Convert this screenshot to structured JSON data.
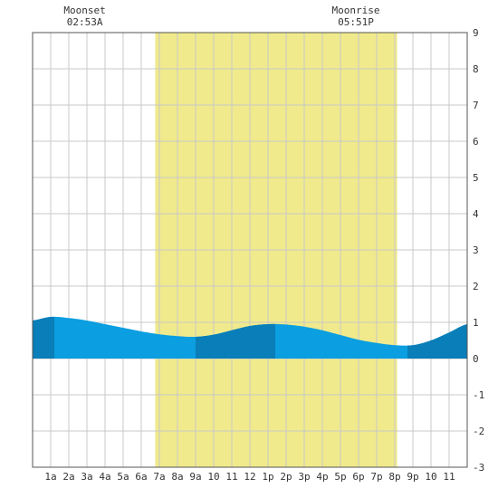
{
  "chart_data": {
    "type": "area",
    "title": "",
    "xlabel": "",
    "ylabel": "",
    "x_tick_labels": [
      "1a",
      "2a",
      "3a",
      "4a",
      "5a",
      "6a",
      "7a",
      "8a",
      "9a",
      "10",
      "11",
      "12",
      "1p",
      "2p",
      "3p",
      "4p",
      "5p",
      "6p",
      "7p",
      "8p",
      "9p",
      "10",
      "11"
    ],
    "xlim": [
      0,
      24
    ],
    "ylim": [
      -3,
      9
    ],
    "y_ticks": [
      9,
      8,
      7,
      6,
      5,
      4,
      3,
      2,
      1,
      0,
      -1,
      -2,
      -3
    ],
    "grid": true,
    "daylight": {
      "start_hour": 6.77,
      "end_hour": 20.13
    },
    "moon_events": [
      {
        "label": "Moonset",
        "time": "02:53A",
        "hour": 2.88
      },
      {
        "label": "Moonrise",
        "time": "05:51P",
        "hour": 17.85
      }
    ],
    "series": [
      {
        "hours": [
          0,
          1,
          2,
          3,
          4,
          5,
          6,
          7,
          8,
          9,
          10,
          11,
          12,
          13,
          14,
          15,
          16,
          17,
          18,
          19,
          20,
          21,
          22,
          23,
          24
        ],
        "values": [
          1.05,
          1.15,
          1.12,
          1.05,
          0.95,
          0.85,
          0.75,
          0.67,
          0.62,
          0.6,
          0.66,
          0.78,
          0.9,
          0.95,
          0.94,
          0.88,
          0.78,
          0.65,
          0.52,
          0.43,
          0.37,
          0.37,
          0.5,
          0.72,
          0.95
        ],
        "shade_bands": [
          [
            0,
            1.2
          ],
          [
            9,
            13.4
          ],
          [
            20.7,
            24
          ]
        ]
      }
    ],
    "colors": {
      "daylight": "#f0ea8c",
      "tide": "#0b9ee0",
      "tide_dark": "#0a7eb8",
      "grid": "#c8c8c8",
      "frame": "#555555"
    }
  }
}
